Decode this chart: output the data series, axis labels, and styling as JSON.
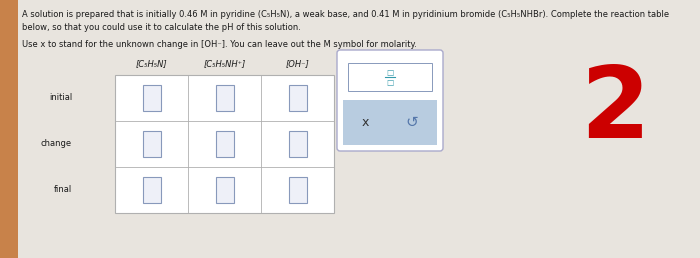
{
  "background_color": "#e8e4de",
  "text_color": "#1a1a1a",
  "line1": "A solution is prepared that is initially 0.46 M in pyridine (C₅H₅N), a weak base, and 0.41 M in pyridinium bromide (C₅H₅NHBr). Complete the reaction table",
  "line2": "below, so that you could use it to calculate the pH of this solution.",
  "line3": "Use x to stand for the unknown change in [OH⁻]. You can leave out the M symbol for molarity.",
  "col_headers": [
    "[C₅H₅N]",
    "[C₅H₅NH⁺]",
    "[OH⁻]"
  ],
  "row_headers": [
    "initial",
    "change",
    "final"
  ],
  "big_number": "2",
  "big_number_color": "#cc0000",
  "stripe_color": "#c8824a"
}
